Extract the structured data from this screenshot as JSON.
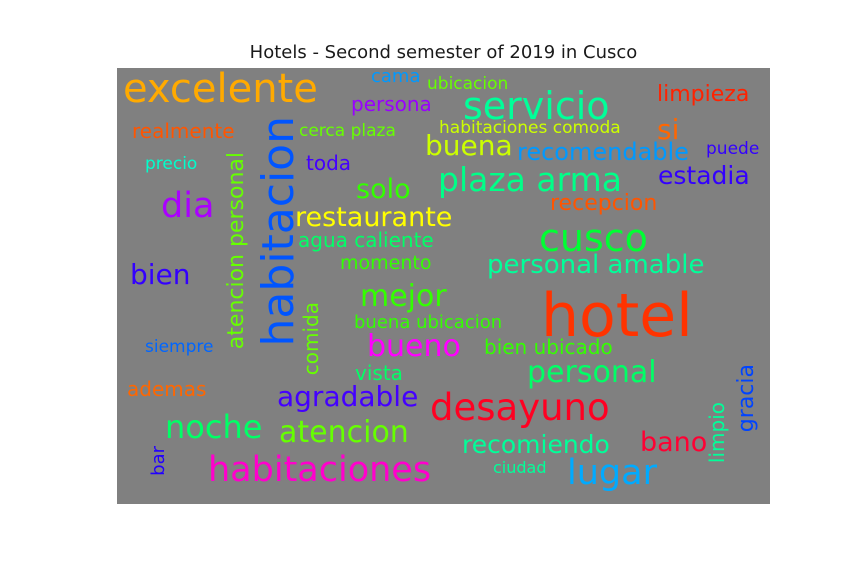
{
  "title": "Hotels - Second semester of 2019 in Cusco",
  "words": [
    {
      "text": "hotel",
      "color": "#ff3300"
    },
    {
      "text": "habitacion",
      "color": "#0055ff"
    },
    {
      "text": "excelente",
      "color": "#ffaa00"
    },
    {
      "text": "servicio",
      "color": "#00ff99"
    },
    {
      "text": "cusco",
      "color": "#00ff33"
    },
    {
      "text": "desayuno",
      "color": "#ff0022"
    },
    {
      "text": "habitaciones",
      "color": "#ff00cc"
    },
    {
      "text": "plaza arma",
      "color": "#00ff88"
    },
    {
      "text": "personal amable",
      "color": "#00ff99"
    },
    {
      "text": "restaurante",
      "color": "#ffff00"
    },
    {
      "text": "dia",
      "color": "#aa00ff"
    },
    {
      "text": "noche",
      "color": "#00ff66"
    },
    {
      "text": "atencion",
      "color": "#66ff00"
    },
    {
      "text": "lugar",
      "color": "#00aaff"
    },
    {
      "text": "personal",
      "color": "#00ff66"
    },
    {
      "text": "bueno",
      "color": "#ff00ff"
    },
    {
      "text": "mejor",
      "color": "#33ff00"
    },
    {
      "text": "buena",
      "color": "#ccff00"
    },
    {
      "text": "agradable",
      "color": "#4400ff"
    },
    {
      "text": "bien",
      "color": "#3300ff"
    },
    {
      "text": "solo",
      "color": "#33ff00"
    },
    {
      "text": "recomiendo",
      "color": "#00ff99"
    },
    {
      "text": "estadia",
      "color": "#3300ff"
    },
    {
      "text": "bano",
      "color": "#ff0033"
    },
    {
      "text": "recomendable",
      "color": "#0099ff"
    },
    {
      "text": "limpieza",
      "color": "#ff2200"
    },
    {
      "text": "recepcion",
      "color": "#ff5500"
    },
    {
      "text": "si",
      "color": "#ff6600"
    },
    {
      "text": "atencion personal",
      "color": "#66ff00"
    },
    {
      "text": "agua caliente",
      "color": "#00ff66"
    },
    {
      "text": "persona",
      "color": "#9900ff"
    },
    {
      "text": "bien ubicado",
      "color": "#33ff00"
    },
    {
      "text": "comida",
      "color": "#66ff00"
    },
    {
      "text": "realmente",
      "color": "#ff5500"
    },
    {
      "text": "vista",
      "color": "#00ff66"
    },
    {
      "text": "ademas",
      "color": "#ff6600"
    },
    {
      "text": "gracia",
      "color": "#0044ff"
    },
    {
      "text": "limpio",
      "color": "#00ff99"
    },
    {
      "text": "momento",
      "color": "#33ff00"
    },
    {
      "text": "buena ubicacion",
      "color": "#33ff00"
    },
    {
      "text": "toda",
      "color": "#4400ff"
    },
    {
      "text": "cerca plaza",
      "color": "#66ff00"
    },
    {
      "text": "habitaciones comoda",
      "color": "#ccff00"
    },
    {
      "text": "ubicacion",
      "color": "#66ff00"
    },
    {
      "text": "cama",
      "color": "#0099ff"
    },
    {
      "text": "precio",
      "color": "#00ffcc"
    },
    {
      "text": "puede",
      "color": "#3300ff"
    },
    {
      "text": "siempre",
      "color": "#0066ff"
    },
    {
      "text": "bar",
      "color": "#2200ff"
    },
    {
      "text": "ciudad",
      "color": "#00ff99"
    }
  ]
}
